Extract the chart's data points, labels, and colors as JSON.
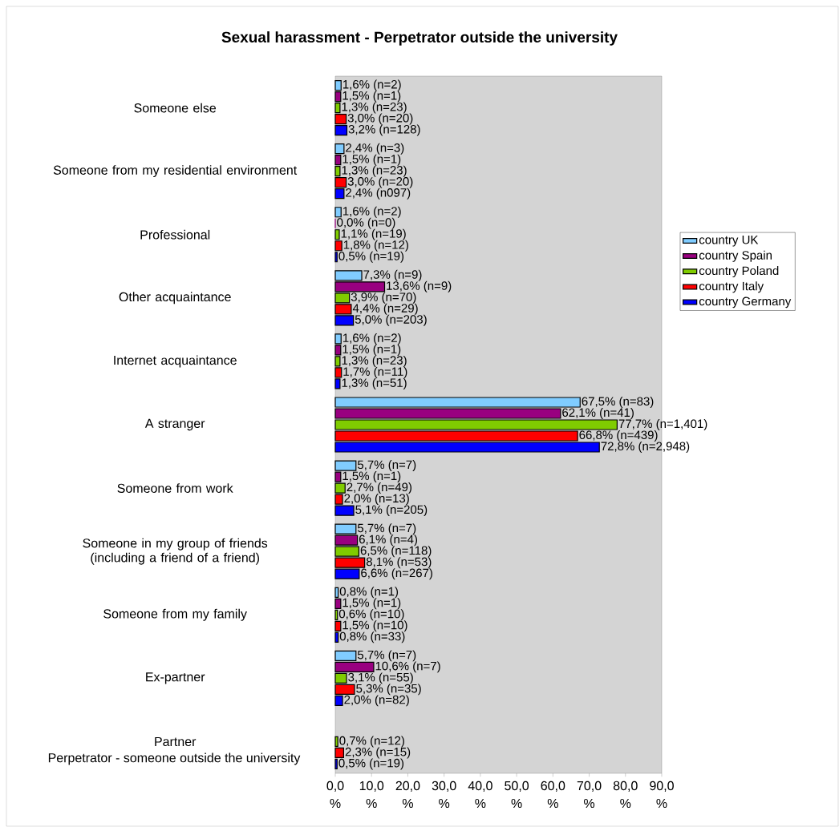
{
  "chart_data": {
    "type": "bar",
    "orientation": "horizontal",
    "title": "Sexual harassment - Perpetrator outside the university",
    "ylabel": "Perpetrator - someone outside the university",
    "categories": [
      "Someone else",
      "Someone from my residential environment",
      "Professional",
      "Other acquaintance",
      "Internet acquaintance",
      "A stranger",
      "Someone from work",
      "Someone in my group of friends (including a friend of a friend)",
      "Someone from my family",
      "Ex-partner",
      "Partner"
    ],
    "series": [
      {
        "name": "country UK",
        "color": "#80ccff",
        "values": [
          1.6,
          2.4,
          1.6,
          7.3,
          1.6,
          67.5,
          5.7,
          5.7,
          0.8,
          5.7,
          null
        ],
        "value_labels": [
          "1,6% (n=2)",
          "2,4% (n=3)",
          "1,6% (n=2)",
          "7,3% (n=9)",
          "1,6% (n=2)",
          "67,5% (n=83)",
          "5,7% (n=7)",
          "5,7% (n=7)",
          "0,8% (n=1)",
          "5,7% (n=7)",
          null
        ]
      },
      {
        "name": "country Spain",
        "color": "#990080",
        "values": [
          1.5,
          1.5,
          0.0,
          13.6,
          1.5,
          62.1,
          1.5,
          6.1,
          1.5,
          10.6,
          null
        ],
        "value_labels": [
          "1,5% (n=1)",
          "1,5% (n=1)",
          "0,0% (n=0)",
          "13,6% (n=9)",
          "1,5% (n=1)",
          "62,1% (n=41)",
          "1,5% (n=1)",
          "6,1% (n=4)",
          "1,5% (n=1)",
          "10,6% (n=7)",
          null
        ]
      },
      {
        "name": "country Poland",
        "color": "#80cc00",
        "values": [
          1.3,
          1.3,
          1.1,
          3.9,
          1.3,
          77.7,
          2.7,
          6.5,
          0.6,
          3.1,
          0.7
        ],
        "value_labels": [
          "1,3% (n=23)",
          "1,3% (n=23)",
          "1,1% (n=19)",
          "3,9% (n=70)",
          "1,3% (n=23)",
          "77,7% (n=1,401)",
          "2,7% (n=49)",
          "6,5% (n=118)",
          "0,6% (n=10)",
          "3,1% (n=55)",
          "0,7% (n=12)"
        ]
      },
      {
        "name": "country Italy",
        "color": "#ff0000",
        "values": [
          3.0,
          3.0,
          1.8,
          4.4,
          1.7,
          66.8,
          2.0,
          8.1,
          1.5,
          5.3,
          2.3
        ],
        "value_labels": [
          "3,0% (n=20)",
          "3,0% (n=20)",
          "1,8% (n=12)",
          "4,4% (n=29)",
          "1,7% (n=11)",
          "66,8% (n=439)",
          "2,0% (n=13)",
          "8,1% (n=53)",
          "1,5% (n=10)",
          "5,3% (n=35)",
          "2,3% (n=15)"
        ]
      },
      {
        "name": "country Germany",
        "color": "#0000ff",
        "values": [
          3.2,
          2.4,
          0.5,
          5.0,
          1.3,
          72.8,
          5.1,
          6.6,
          0.8,
          2.0,
          0.5
        ],
        "value_labels": [
          "3,2% (n=128)",
          "2,4% (n097)",
          "0,5% (n=19)",
          "5,0% (n=203)",
          "1,3% (n=51)",
          "72,8% (n=2,948)",
          "5,1% (n=205)",
          "6,6% (n=267)",
          "0,8% (n=33)",
          "2,0% (n=82)",
          "0,5% (n=19)"
        ]
      }
    ],
    "xlim": [
      0,
      90
    ],
    "xticks": [
      {
        "value": 0,
        "label": "0,0 %"
      },
      {
        "value": 10,
        "label": "10,0 %"
      },
      {
        "value": 20,
        "label": "20,0 %"
      },
      {
        "value": 30,
        "label": "30,0 %"
      },
      {
        "value": 40,
        "label": "40,0 %"
      },
      {
        "value": 50,
        "label": "50,0 %"
      },
      {
        "value": 60,
        "label": "60,0 %"
      },
      {
        "value": 70,
        "label": "70,0 %"
      },
      {
        "value": 80,
        "label": "80,0 %"
      },
      {
        "value": 90,
        "label": "90,0 %"
      }
    ],
    "legend": "right"
  }
}
